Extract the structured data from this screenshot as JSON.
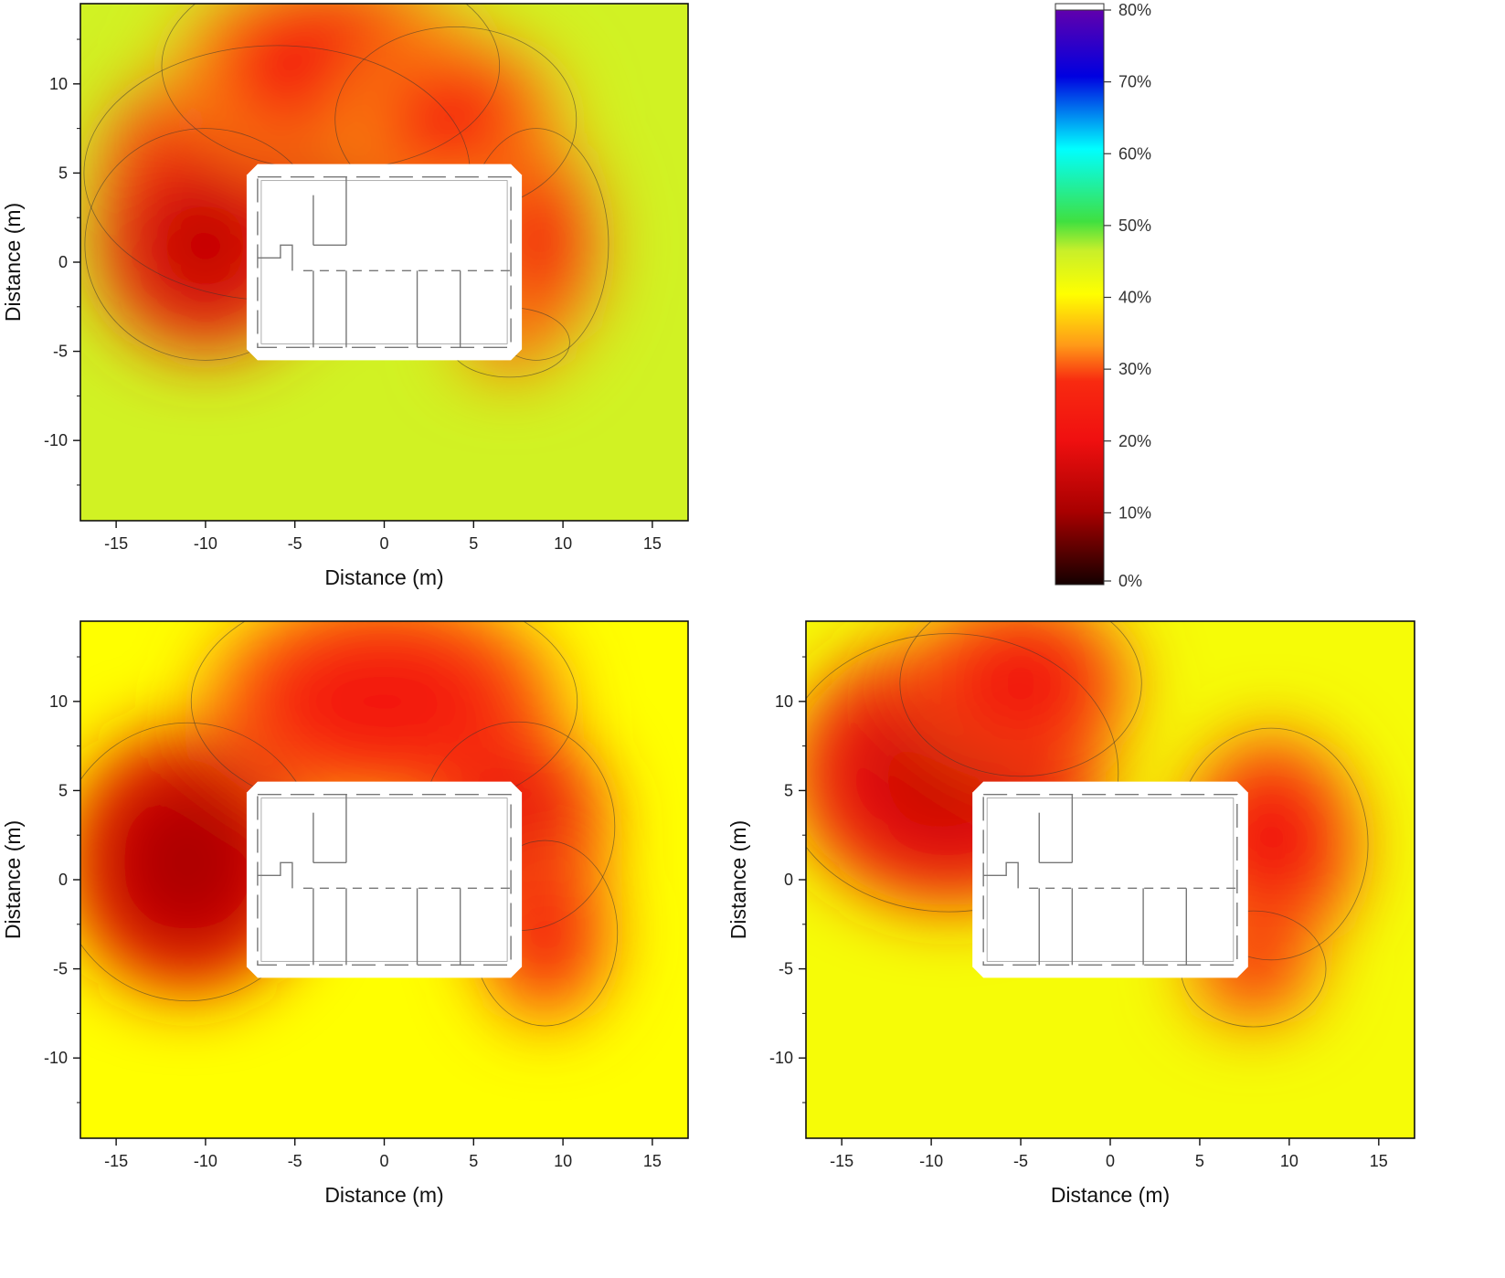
{
  "chart_data": [
    {
      "type": "heatmap",
      "position": "top-left",
      "xlabel": "Distance (m)",
      "ylabel": "Distance (m)",
      "xlim": [
        -17,
        17
      ],
      "ylim": [
        -14.5,
        14.5
      ],
      "xticks": [
        -15,
        -10,
        -5,
        0,
        5,
        10,
        15
      ],
      "yticks": [
        -10,
        -5,
        0,
        5,
        10
      ],
      "background_value": 45,
      "building": {
        "x": [
          -7.7,
          7.7
        ],
        "y": [
          -5.5,
          5.5
        ]
      },
      "hotspots": [
        {
          "x": -6,
          "y": 5,
          "rx": 8,
          "ry": 5.5,
          "value": 15
        },
        {
          "x": -10,
          "y": 1,
          "rx": 5,
          "ry": 5,
          "value": 13
        },
        {
          "x": -3,
          "y": 11,
          "rx": 7,
          "ry": 4.5,
          "value": 22
        },
        {
          "x": 4,
          "y": 8,
          "rx": 5,
          "ry": 4,
          "value": 24
        },
        {
          "x": 8.5,
          "y": 1,
          "rx": 3,
          "ry": 5,
          "value": 22
        },
        {
          "x": 7,
          "y": -4.5,
          "rx": 2.5,
          "ry": 1.5,
          "value": 26
        }
      ]
    },
    {
      "type": "heatmap",
      "position": "bottom-left",
      "xlabel": "Distance (m)",
      "ylabel": "Distance (m)",
      "xlim": [
        -17,
        17
      ],
      "ylim": [
        -14.5,
        14.5
      ],
      "xticks": [
        -15,
        -10,
        -5,
        0,
        5,
        10,
        15
      ],
      "yticks": [
        -10,
        -5,
        0,
        5,
        10
      ],
      "background_value": 40,
      "building": {
        "x": [
          -7.7,
          7.7
        ],
        "y": [
          -5.5,
          5.5
        ]
      },
      "hotspots": [
        {
          "x": -11,
          "y": 1,
          "rx": 5.5,
          "ry": 6,
          "value": 10
        },
        {
          "x": 0,
          "y": 10,
          "rx": 8,
          "ry": 5,
          "value": 22
        },
        {
          "x": 7.5,
          "y": 3,
          "rx": 4,
          "ry": 4.5,
          "value": 18
        },
        {
          "x": 9,
          "y": -3,
          "rx": 3,
          "ry": 4,
          "value": 22
        }
      ]
    },
    {
      "type": "heatmap",
      "position": "bottom-right",
      "xlabel": "Distance (m)",
      "ylabel": "Distance (m)",
      "xlim": [
        -17,
        17
      ],
      "ylim": [
        -14.5,
        14.5
      ],
      "xticks": [
        -15,
        -10,
        -5,
        0,
        5,
        10,
        15
      ],
      "yticks": [
        -10,
        -5,
        0,
        5,
        10
      ],
      "background_value": 41,
      "building": {
        "x": [
          -7.7,
          7.7
        ],
        "y": [
          -5.5,
          5.5
        ]
      },
      "hotspots": [
        {
          "x": -9,
          "y": 6,
          "rx": 7,
          "ry": 6,
          "value": 14
        },
        {
          "x": -5,
          "y": 11,
          "rx": 5,
          "ry": 4,
          "value": 20
        },
        {
          "x": 9,
          "y": 2,
          "rx": 4,
          "ry": 5,
          "value": 20
        },
        {
          "x": 8,
          "y": -5,
          "rx": 3,
          "ry": 2.5,
          "value": 24
        }
      ]
    }
  ],
  "colorbar": {
    "min": 0,
    "max": 80,
    "ticks": [
      "0%",
      "10%",
      "20%",
      "30%",
      "40%",
      "50%",
      "60%",
      "70%",
      "80%"
    ],
    "tick_values": [
      0,
      10,
      20,
      30,
      40,
      50,
      60,
      70,
      80
    ],
    "colors": [
      {
        "value": 0,
        "color": "#140000"
      },
      {
        "value": 10,
        "color": "#a80000"
      },
      {
        "value": 20,
        "color": "#f01010"
      },
      {
        "value": 28,
        "color": "#f82a10"
      },
      {
        "value": 33,
        "color": "#ff9a18"
      },
      {
        "value": 40,
        "color": "#ffff00"
      },
      {
        "value": 46,
        "color": "#c8ef2a"
      },
      {
        "value": 50,
        "color": "#40e040"
      },
      {
        "value": 60,
        "color": "#00ffff"
      },
      {
        "value": 70,
        "color": "#0000e0"
      },
      {
        "value": 80,
        "color": "#6a00a8"
      }
    ]
  }
}
